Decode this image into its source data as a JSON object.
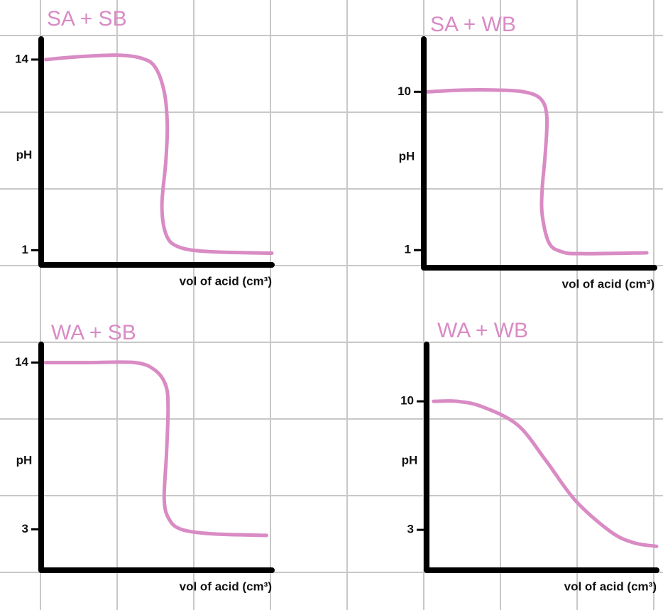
{
  "chart_data": [
    {
      "type": "line",
      "title": "SA + SB",
      "x_label": "vol of acid (cm³)",
      "y_label": "pH",
      "color": "#d98bc4",
      "x": [
        0.6,
        5,
        10,
        13,
        14.8,
        16,
        16.4,
        16.2,
        15.7,
        16.3,
        18,
        22,
        30
      ],
      "values": [
        14,
        14.2,
        14.3,
        14.1,
        13.5,
        11.8,
        9.5,
        7,
        4,
        2,
        1.2,
        0.9,
        0.8
      ],
      "xlim": [
        0,
        30
      ],
      "ylim": [
        0,
        15.4
      ],
      "yticks": [
        1,
        14
      ]
    },
    {
      "type": "line",
      "title": "SA + WB",
      "x_label": "vol of acid (cm³)",
      "y_label": "pH",
      "color": "#d98bc4",
      "x": [
        0.5,
        5,
        9.5,
        13,
        15.2,
        16,
        15.8,
        15.4,
        15.4,
        16.3,
        18,
        20.6,
        29
      ],
      "values": [
        10,
        10.1,
        10.1,
        10,
        9.6,
        8.6,
        6.5,
        4.5,
        3,
        1.4,
        0.9,
        0.8,
        0.85
      ],
      "xlim": [
        0,
        30
      ],
      "ylim": [
        0,
        13
      ],
      "yticks": [
        1,
        10
      ]
    },
    {
      "type": "line",
      "title": "WA + SB",
      "x_label": "vol of acid (cm³)",
      "y_label": "pH",
      "color": "#d98bc4",
      "x": [
        0.5,
        6,
        12.2,
        14.8,
        16.2,
        16.5,
        16.3,
        16,
        16.6,
        18.2,
        22.3,
        29.3
      ],
      "values": [
        14,
        14,
        14,
        13.5,
        12.5,
        11,
        8,
        5,
        3.7,
        3,
        2.7,
        2.6
      ],
      "xlim": [
        0,
        30
      ],
      "ylim": [
        0.3,
        15.2
      ],
      "yticks": [
        3,
        14
      ]
    },
    {
      "type": "line",
      "title": "WA + WB",
      "x_label": "vol of acid (cm³)",
      "y_label": "pH",
      "color": "#d98bc4",
      "x": [
        0.9,
        4,
        7.3,
        11.9,
        15.6,
        19.4,
        24,
        27,
        30
      ],
      "values": [
        10,
        10,
        9.7,
        8.7,
        6.75,
        4.6,
        2.9,
        2.3,
        2.1
      ],
      "xlim": [
        0,
        30
      ],
      "ylim": [
        0.8,
        13.1
      ],
      "yticks": [
        3,
        10
      ]
    }
  ]
}
